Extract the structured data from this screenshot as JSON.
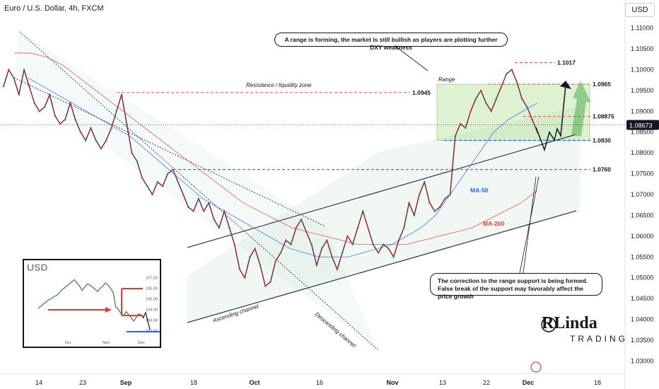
{
  "title": "Euro / U.S. Dollar, 4h, FXCM",
  "currency_button": "USD",
  "chart_data": {
    "type": "line",
    "title": "Euro / U.S. Dollar, 4h, FXCM",
    "y_ticks": [
      1.11,
      1.105,
      1.1,
      1.095,
      1.09,
      1.085,
      1.08,
      1.075,
      1.07,
      1.065,
      1.06,
      1.055,
      1.05,
      1.045,
      1.04,
      1.035,
      1.03
    ],
    "y_tick_labels": [
      "1.11000",
      "1.10500",
      "1.10000",
      "1.09500",
      "1.09000",
      "1.08500",
      "1.08000",
      "1.07500",
      "1.07000",
      "1.06500",
      "1.06000",
      "1.05500",
      "1.05000",
      "1.04500",
      "1.04000",
      "1.03500",
      "1.03000"
    ],
    "ylim": [
      1.027,
      1.113
    ],
    "x_tick_labels": [
      "14",
      "23",
      "Sep",
      "18",
      "Oct",
      "16",
      "Nov",
      "13",
      "22",
      "Dec",
      "18"
    ],
    "current_price": "1.08673",
    "series": [
      {
        "name": "EURUSD",
        "color": "#131722",
        "values": [
          1.096,
          1.1,
          1.098,
          1.094,
          1.1,
          1.096,
          1.092,
          1.09,
          1.091,
          1.094,
          1.089,
          1.087,
          1.088,
          1.092,
          1.088,
          1.085,
          1.083,
          1.086,
          1.083,
          1.081,
          1.083,
          1.086,
          1.09,
          1.094,
          1.087,
          1.08,
          1.078,
          1.074,
          1.072,
          1.07,
          1.073,
          1.072,
          1.075,
          1.076,
          1.073,
          1.07,
          1.067,
          1.066,
          1.069,
          1.066,
          1.068,
          1.064,
          1.062,
          1.066,
          1.062,
          1.058,
          1.052,
          1.05,
          1.055,
          1.057,
          1.053,
          1.048,
          1.049,
          1.054,
          1.056,
          1.059,
          1.058,
          1.062,
          1.064,
          1.061,
          1.058,
          1.053,
          1.057,
          1.059,
          1.055,
          1.052,
          1.056,
          1.06,
          1.058,
          1.062,
          1.066,
          1.062,
          1.058,
          1.056,
          1.058,
          1.057,
          1.055,
          1.059,
          1.062,
          1.068,
          1.065,
          1.07,
          1.073,
          1.068,
          1.066,
          1.067,
          1.069,
          1.07,
          1.084,
          1.087,
          1.086,
          1.09,
          1.093,
          1.095,
          1.092,
          1.09,
          1.093,
          1.096,
          1.099,
          1.1,
          1.097,
          1.093,
          1.091,
          1.088,
          1.085
        ]
      },
      {
        "name": "MA-50",
        "color": "#2962ff",
        "values": [
          1.098,
          1.096,
          1.094,
          1.092,
          1.09,
          1.088,
          1.086,
          1.084,
          1.081,
          1.078,
          1.075,
          1.072,
          1.069,
          1.067,
          1.065,
          1.063,
          1.061,
          1.059,
          1.057,
          1.056,
          1.055,
          1.055,
          1.055,
          1.056,
          1.057,
          1.058,
          1.06,
          1.062,
          1.065,
          1.07,
          1.075,
          1.08,
          1.085,
          1.088,
          1.09,
          1.092
        ]
      },
      {
        "name": "MA-200",
        "color": "#e53935",
        "values": [
          1.104,
          1.104,
          1.103,
          1.101,
          1.098,
          1.095,
          1.092,
          1.089,
          1.086,
          1.083,
          1.08,
          1.077,
          1.074,
          1.071,
          1.068,
          1.066,
          1.064,
          1.062,
          1.061,
          1.06,
          1.059,
          1.058,
          1.058,
          1.058,
          1.058,
          1.059,
          1.06,
          1.061,
          1.062,
          1.064,
          1.066,
          1.068,
          1.071
        ]
      }
    ],
    "levels": [
      {
        "label": "1.1017",
        "value": 1.1017,
        "color": "#e53935"
      },
      {
        "label": "1.0965",
        "value": 1.0965,
        "color": "#e53935"
      },
      {
        "label": "1.0945",
        "value": 1.0945,
        "color": "#e53935"
      },
      {
        "label": "1.08875",
        "value": 1.08875,
        "color": "#e53935"
      },
      {
        "label": "1.0830",
        "value": 1.083,
        "color": "#2962ff"
      },
      {
        "label": "1.0760",
        "value": 1.076,
        "color": "#2962ff"
      }
    ],
    "annotations": {
      "range": "Range",
      "resistance": "Resistance / liquidity zone",
      "ma50": "MA-50",
      "ma200": "MA-200",
      "ascending": "Ascending channel",
      "descending": "Descending channel",
      "note_top": "A range is forming, the market is still bullish as players are plotting further DXY weakness",
      "note_bottom_1": "The correction to the range support is being formed.",
      "note_bottom_2": "False break of the support may favorably affect the price growth"
    },
    "legend": "none",
    "grid": false
  },
  "inset": {
    "title": "USD",
    "y_tick_labels": [
      "107.00",
      "106.00",
      "105.00",
      "104.00",
      "103.00",
      "102.00"
    ],
    "x_tick_labels": [
      "Oct",
      "Nov",
      "Dec"
    ],
    "values": [
      104.1,
      104.3,
      104.5,
      104.7,
      104.9,
      105.0,
      105.2,
      105.3,
      105.5,
      105.8,
      106.0,
      106.2,
      106.4,
      106.6,
      106.8,
      106.5,
      106.2,
      105.8,
      106.1,
      106.4,
      106.3,
      106.1,
      105.9,
      105.7,
      106.0,
      106.2,
      106.5,
      106.3,
      106.0,
      105.6,
      104.2,
      104.0,
      103.6,
      103.4,
      103.8,
      103.5,
      103.2,
      102.9,
      103.3,
      103.6,
      103.4,
      103.2
    ]
  },
  "logo": {
    "main": "RLinda",
    "sub": "TRADING"
  }
}
